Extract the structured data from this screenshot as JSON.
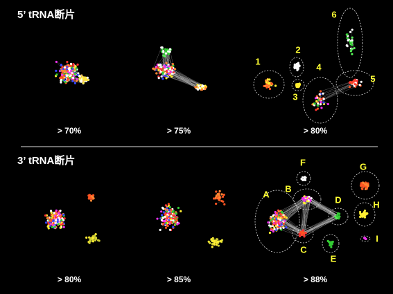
{
  "sections": [
    {
      "title": "5’ tRNA断片",
      "panels": [
        "> 70%",
        "> 75%",
        "> 80%"
      ],
      "cluster_labels": [
        "1",
        "2",
        "3",
        "4",
        "5",
        "6"
      ]
    },
    {
      "title": "3’ tRNA断片",
      "panels": [
        "> 80%",
        "> 85%",
        "> 88%"
      ],
      "cluster_labels": [
        "A",
        "B",
        "C",
        "D",
        "E",
        "F",
        "G",
        "H",
        "I"
      ]
    }
  ]
}
